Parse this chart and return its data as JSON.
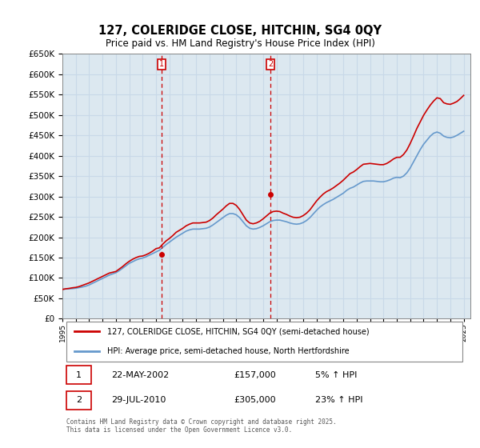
{
  "title": "127, COLERIDGE CLOSE, HITCHIN, SG4 0QY",
  "subtitle": "Price paid vs. HM Land Registry's House Price Index (HPI)",
  "ylabel_ticks": [
    "£0",
    "£50K",
    "£100K",
    "£150K",
    "£200K",
    "£250K",
    "£300K",
    "£350K",
    "£400K",
    "£450K",
    "£500K",
    "£550K",
    "£600K",
    "£650K"
  ],
  "ylim": [
    0,
    650000
  ],
  "ytick_vals": [
    0,
    50000,
    100000,
    150000,
    200000,
    250000,
    300000,
    350000,
    400000,
    450000,
    500000,
    550000,
    600000,
    650000
  ],
  "xlim_start": 1995.0,
  "xlim_end": 2025.5,
  "grid_color": "#c8d8e8",
  "background_color": "#dce8f0",
  "plot_bg_color": "#dce8f0",
  "line_color_red": "#cc0000",
  "line_color_blue": "#6699cc",
  "marker1_x": 2002.388,
  "marker1_y": 157000,
  "marker2_x": 2010.572,
  "marker2_y": 305000,
  "legend_label_red": "127, COLERIDGE CLOSE, HITCHIN, SG4 0QY (semi-detached house)",
  "legend_label_blue": "HPI: Average price, semi-detached house, North Hertfordshire",
  "annotation1_label": "1",
  "annotation2_label": "2",
  "footer_text": "Contains HM Land Registry data © Crown copyright and database right 2025.\nThis data is licensed under the Open Government Licence v3.0.",
  "table_row1": "1    22-MAY-2002    £157,000    5% ↑ HPI",
  "table_row2": "2    29-JUL-2010    £305,000    23% ↑ HPI",
  "hpi_data_x": [
    1995.0,
    1995.25,
    1995.5,
    1995.75,
    1996.0,
    1996.25,
    1996.5,
    1996.75,
    1997.0,
    1997.25,
    1997.5,
    1997.75,
    1998.0,
    1998.25,
    1998.5,
    1998.75,
    1999.0,
    1999.25,
    1999.5,
    1999.75,
    2000.0,
    2000.25,
    2000.5,
    2000.75,
    2001.0,
    2001.25,
    2001.5,
    2001.75,
    2002.0,
    2002.25,
    2002.5,
    2002.75,
    2003.0,
    2003.25,
    2003.5,
    2003.75,
    2004.0,
    2004.25,
    2004.5,
    2004.75,
    2005.0,
    2005.25,
    2005.5,
    2005.75,
    2006.0,
    2006.25,
    2006.5,
    2006.75,
    2007.0,
    2007.25,
    2007.5,
    2007.75,
    2008.0,
    2008.25,
    2008.5,
    2008.75,
    2009.0,
    2009.25,
    2009.5,
    2009.75,
    2010.0,
    2010.25,
    2010.5,
    2010.75,
    2011.0,
    2011.25,
    2011.5,
    2011.75,
    2012.0,
    2012.25,
    2012.5,
    2012.75,
    2013.0,
    2013.25,
    2013.5,
    2013.75,
    2014.0,
    2014.25,
    2014.5,
    2014.75,
    2015.0,
    2015.25,
    2015.5,
    2015.75,
    2016.0,
    2016.25,
    2016.5,
    2016.75,
    2017.0,
    2017.25,
    2017.5,
    2017.75,
    2018.0,
    2018.25,
    2018.5,
    2018.75,
    2019.0,
    2019.25,
    2019.5,
    2019.75,
    2020.0,
    2020.25,
    2020.5,
    2020.75,
    2021.0,
    2021.25,
    2021.5,
    2021.75,
    2022.0,
    2022.25,
    2022.5,
    2022.75,
    2023.0,
    2023.25,
    2023.5,
    2023.75,
    2024.0,
    2024.25,
    2024.5,
    2024.75,
    2025.0
  ],
  "hpi_data_y": [
    72000,
    73000,
    73500,
    74000,
    75000,
    76500,
    78000,
    80000,
    83000,
    87000,
    91000,
    95000,
    99000,
    103000,
    107000,
    110000,
    113000,
    118000,
    124000,
    130000,
    136000,
    140000,
    144000,
    147000,
    149000,
    152000,
    156000,
    160000,
    164000,
    168000,
    175000,
    182000,
    188000,
    194000,
    200000,
    205000,
    210000,
    215000,
    218000,
    220000,
    220000,
    220000,
    221000,
    222000,
    225000,
    230000,
    236000,
    242000,
    248000,
    254000,
    258000,
    258000,
    255000,
    248000,
    238000,
    228000,
    222000,
    220000,
    221000,
    224000,
    228000,
    233000,
    238000,
    241000,
    242000,
    242000,
    240000,
    238000,
    235000,
    233000,
    232000,
    233000,
    236000,
    241000,
    248000,
    257000,
    266000,
    274000,
    280000,
    285000,
    289000,
    293000,
    298000,
    303000,
    308000,
    315000,
    320000,
    323000,
    328000,
    333000,
    337000,
    338000,
    338000,
    338000,
    337000,
    336000,
    336000,
    338000,
    341000,
    345000,
    347000,
    346000,
    350000,
    358000,
    370000,
    385000,
    400000,
    415000,
    428000,
    438000,
    448000,
    455000,
    458000,
    455000,
    448000,
    445000,
    444000,
    446000,
    450000,
    455000,
    460000
  ],
  "price_data_x": [
    1995.0,
    1995.25,
    1995.5,
    1995.75,
    1996.0,
    1996.25,
    1996.5,
    1996.75,
    1997.0,
    1997.25,
    1997.5,
    1997.75,
    1998.0,
    1998.25,
    1998.5,
    1998.75,
    1999.0,
    1999.25,
    1999.5,
    1999.75,
    2000.0,
    2000.25,
    2000.5,
    2000.75,
    2001.0,
    2001.25,
    2001.5,
    2001.75,
    2002.0,
    2002.25,
    2002.5,
    2002.75,
    2003.0,
    2003.25,
    2003.5,
    2003.75,
    2004.0,
    2004.25,
    2004.5,
    2004.75,
    2005.0,
    2005.25,
    2005.5,
    2005.75,
    2006.0,
    2006.25,
    2006.5,
    2006.75,
    2007.0,
    2007.25,
    2007.5,
    2007.75,
    2008.0,
    2008.25,
    2008.5,
    2008.75,
    2009.0,
    2009.25,
    2009.5,
    2009.75,
    2010.0,
    2010.25,
    2010.5,
    2010.75,
    2011.0,
    2011.25,
    2011.5,
    2011.75,
    2012.0,
    2012.25,
    2012.5,
    2012.75,
    2013.0,
    2013.25,
    2013.5,
    2013.75,
    2014.0,
    2014.25,
    2014.5,
    2014.75,
    2015.0,
    2015.25,
    2015.5,
    2015.75,
    2016.0,
    2016.25,
    2016.5,
    2016.75,
    2017.0,
    2017.25,
    2017.5,
    2017.75,
    2018.0,
    2018.25,
    2018.5,
    2018.75,
    2019.0,
    2019.25,
    2019.5,
    2019.75,
    2020.0,
    2020.25,
    2020.5,
    2020.75,
    2021.0,
    2021.25,
    2021.5,
    2021.75,
    2022.0,
    2022.25,
    2022.5,
    2022.75,
    2023.0,
    2023.25,
    2023.5,
    2023.75,
    2024.0,
    2024.25,
    2024.5,
    2024.75,
    2025.0
  ],
  "price_data_y": [
    72000,
    73500,
    74500,
    76000,
    77000,
    79000,
    82000,
    85000,
    88000,
    92000,
    96000,
    100000,
    104000,
    108000,
    112000,
    114000,
    116000,
    122000,
    128000,
    135000,
    141000,
    146000,
    150000,
    153000,
    154000,
    157000,
    161000,
    166000,
    172000,
    174000,
    183000,
    191000,
    197000,
    204000,
    212000,
    217000,
    222000,
    228000,
    232000,
    235000,
    235000,
    235000,
    236000,
    237000,
    241000,
    247000,
    255000,
    262000,
    269000,
    277000,
    283000,
    283000,
    278000,
    268000,
    255000,
    242000,
    235000,
    233000,
    235000,
    239000,
    245000,
    252000,
    259000,
    263000,
    264000,
    263000,
    259000,
    256000,
    252000,
    249000,
    248000,
    249000,
    253000,
    259000,
    267000,
    278000,
    289000,
    298000,
    306000,
    312000,
    316000,
    321000,
    327000,
    333000,
    340000,
    348000,
    356000,
    360000,
    366000,
    373000,
    379000,
    380000,
    381000,
    380000,
    379000,
    378000,
    378000,
    381000,
    386000,
    392000,
    396000,
    396000,
    403000,
    414000,
    430000,
    448000,
    467000,
    483000,
    499000,
    512000,
    524000,
    534000,
    542000,
    540000,
    530000,
    527000,
    526000,
    529000,
    533000,
    540000,
    548000
  ]
}
